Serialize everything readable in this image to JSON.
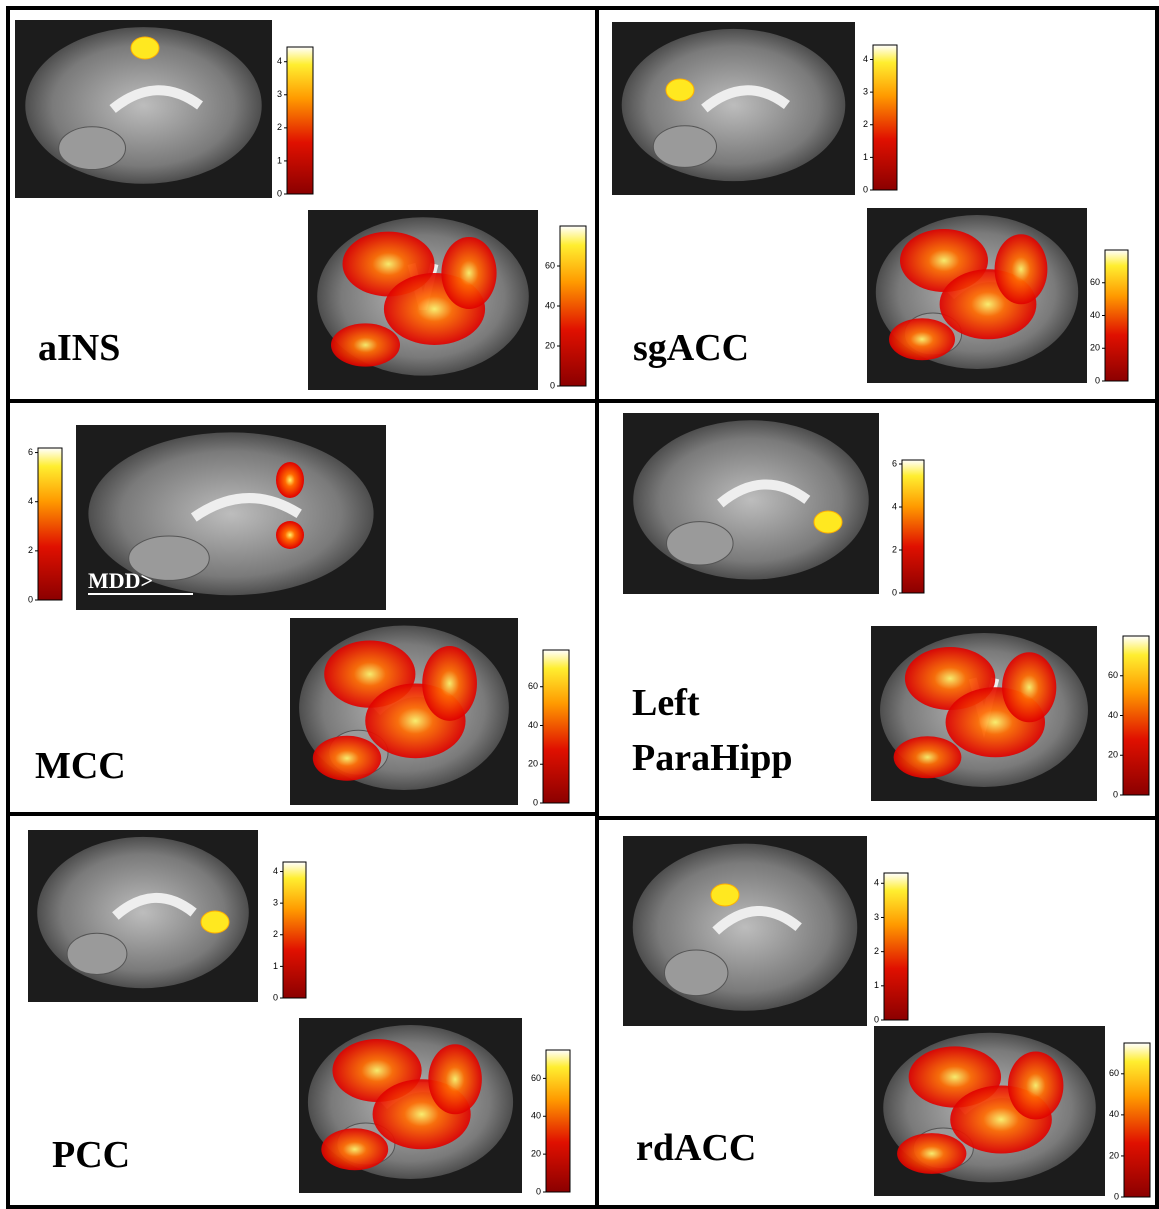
{
  "panels": [
    {
      "label_lines": [
        "aINS"
      ],
      "top_colorbar_ticks": [
        0,
        1,
        2,
        3,
        4
      ],
      "bottom_colorbar_ticks": [
        0,
        20,
        40,
        60
      ]
    },
    {
      "label_lines": [
        "sgACC"
      ],
      "top_colorbar_ticks": [
        0,
        1,
        2,
        3,
        4
      ],
      "bottom_colorbar_ticks": [
        0,
        20,
        40,
        60
      ]
    },
    {
      "label_lines": [
        "MCC"
      ],
      "annotation": "MDD>",
      "top_colorbar_ticks": [
        0,
        2,
        4,
        6
      ],
      "bottom_colorbar_ticks": [
        0,
        20,
        40,
        60
      ]
    },
    {
      "label_lines": [
        "Left",
        "ParaHipp"
      ],
      "top_colorbar_ticks": [
        0,
        2,
        4,
        6
      ],
      "bottom_colorbar_ticks": [
        0,
        20,
        40,
        60
      ]
    },
    {
      "label_lines": [
        "PCC"
      ],
      "top_colorbar_ticks": [
        0,
        1,
        2,
        3,
        4
      ],
      "bottom_colorbar_ticks": [
        0,
        20,
        40,
        60
      ]
    },
    {
      "label_lines": [
        "rdACC"
      ],
      "top_colorbar_ticks": [
        0,
        1,
        2,
        3,
        4
      ],
      "bottom_colorbar_ticks": [
        0,
        20,
        40,
        60
      ]
    }
  ]
}
